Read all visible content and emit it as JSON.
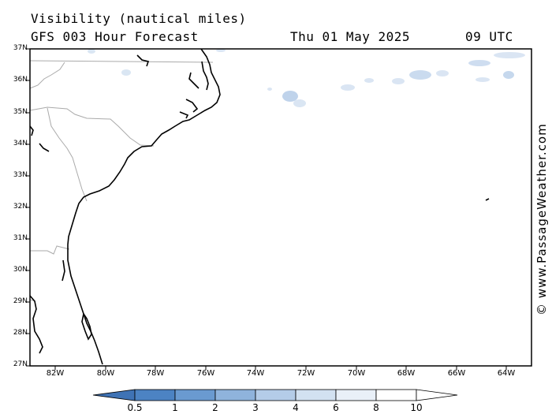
{
  "header": {
    "title": "Visibility (nautical miles)",
    "subtitle": "GFS 003 Hour Forecast",
    "date": "Thu 01 May 2025",
    "time": "09 UTC"
  },
  "credit": "© www.PassageWeather.com",
  "lat_labels": [
    "37N",
    "36N",
    "35N",
    "34N",
    "33N",
    "32N",
    "31N",
    "30N",
    "29N",
    "28N",
    "27N"
  ],
  "lon_labels": [
    "82W",
    "80W",
    "78W",
    "76W",
    "74W",
    "72W",
    "70W",
    "68W",
    "66W",
    "64W"
  ],
  "colorbar": {
    "labels": [
      "0.5",
      "1",
      "2",
      "3",
      "4",
      "6",
      "8",
      "10"
    ],
    "colors": [
      "#3f73b5",
      "#4c83c3",
      "#6a9ad0",
      "#8fb3dc",
      "#b4cce8",
      "#d2e1f1",
      "#e9f0f8",
      "#ffffff"
    ]
  }
}
